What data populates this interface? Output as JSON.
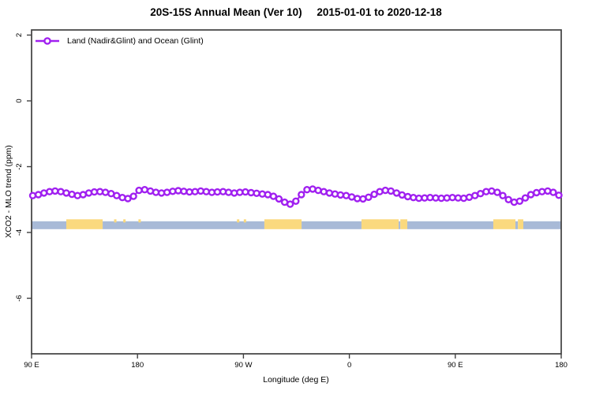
{
  "title": {
    "range_label": "20S-15S Annual Mean (Ver 10)",
    "date_range": "2015-01-01 to 2020-12-18"
  },
  "legend": {
    "label": "Land (Nadir&Glint) and Ocean (Glint)",
    "color": "#A020F0"
  },
  "axes": {
    "x": {
      "label": "Longitude (deg E)",
      "ticks": [
        {
          "lon": 90,
          "label": "90 E"
        },
        {
          "lon": 180,
          "label": "180"
        },
        {
          "lon": 270,
          "label": "90 W"
        },
        {
          "lon": 360,
          "label": "0"
        },
        {
          "lon": 450,
          "label": "90 E"
        },
        {
          "lon": 540,
          "label": "180"
        }
      ]
    },
    "y": {
      "label": "XCO2 - MLO trend (ppm)",
      "ticks": [
        {
          "value": 2,
          "label": "2"
        },
        {
          "value": 0,
          "label": "0"
        },
        {
          "value": -2,
          "label": "-2"
        },
        {
          "value": -4,
          "label": "-4"
        },
        {
          "value": -6,
          "label": "-6"
        }
      ]
    }
  },
  "colors": {
    "series": "#A020F0",
    "ocean": "#A8BAD7",
    "land": "#FAD97E",
    "axis": "#404040"
  },
  "chart_data": {
    "type": "line",
    "title": "20S-15S Annual Mean (Ver 10)   2015-01-01 to 2020-12-18",
    "xlabel": "Longitude (deg E)",
    "ylabel": "XCO2 - MLO trend (ppm)",
    "xlim": [
      90,
      540
    ],
    "ylim": [
      -7.7,
      2.2
    ],
    "x_tick_labels": [
      "90 E",
      "180",
      "90 W",
      "0",
      "90 E",
      "180"
    ],
    "grid": false,
    "legend_position": "top-left",
    "series": [
      {
        "name": "Land (Nadir&Glint) and Ocean (Glint)",
        "color": "#A020F0",
        "marker": "open-circle",
        "x": [
          91.0,
          95.8,
          100.5,
          105.3,
          110.0,
          114.8,
          119.5,
          124.3,
          129.0,
          133.8,
          138.6,
          143.3,
          148.1,
          152.8,
          157.6,
          162.3,
          167.1,
          171.8,
          176.6,
          181.3,
          186.1,
          190.9,
          195.6,
          200.4,
          205.1,
          209.9,
          214.6,
          219.4,
          224.1,
          228.9,
          233.7,
          238.4,
          243.2,
          247.9,
          252.7,
          257.4,
          262.2,
          266.9,
          271.7,
          276.5,
          281.2,
          286.0,
          290.7,
          295.5,
          300.2,
          305.0,
          309.7,
          314.5,
          319.2,
          324.0,
          328.8,
          333.5,
          338.3,
          343.0,
          347.8,
          352.5,
          357.3,
          362.0,
          366.8,
          371.6,
          376.3,
          381.1,
          385.8,
          390.6,
          395.3,
          400.1,
          404.8,
          409.6,
          414.4,
          419.1,
          423.9,
          428.6,
          433.4,
          438.1,
          442.9,
          447.6,
          452.4,
          457.2,
          461.9,
          466.7,
          471.4,
          476.2,
          480.9,
          485.7,
          490.4,
          495.2,
          500.0,
          504.7,
          509.5,
          514.2,
          519.0,
          523.7,
          528.5,
          533.2,
          538.0
        ],
        "y": [
          -2.88,
          -2.85,
          -2.8,
          -2.76,
          -2.74,
          -2.76,
          -2.8,
          -2.84,
          -2.88,
          -2.85,
          -2.8,
          -2.77,
          -2.76,
          -2.78,
          -2.82,
          -2.88,
          -2.94,
          -2.97,
          -2.9,
          -2.72,
          -2.7,
          -2.74,
          -2.78,
          -2.8,
          -2.78,
          -2.75,
          -2.73,
          -2.75,
          -2.77,
          -2.76,
          -2.74,
          -2.76,
          -2.78,
          -2.77,
          -2.76,
          -2.78,
          -2.8,
          -2.78,
          -2.77,
          -2.79,
          -2.81,
          -2.83,
          -2.85,
          -2.9,
          -2.98,
          -3.08,
          -3.14,
          -3.05,
          -2.85,
          -2.7,
          -2.68,
          -2.72,
          -2.76,
          -2.8,
          -2.83,
          -2.86,
          -2.88,
          -2.92,
          -2.97,
          -2.98,
          -2.93,
          -2.84,
          -2.76,
          -2.72,
          -2.74,
          -2.8,
          -2.86,
          -2.91,
          -2.94,
          -2.96,
          -2.95,
          -2.94,
          -2.95,
          -2.96,
          -2.95,
          -2.94,
          -2.95,
          -2.96,
          -2.93,
          -2.88,
          -2.82,
          -2.76,
          -2.74,
          -2.78,
          -2.88,
          -3.0,
          -3.08,
          -3.05,
          -2.95,
          -2.85,
          -2.79,
          -2.76,
          -2.74,
          -2.78,
          -2.87
        ]
      }
    ],
    "surface_band": {
      "description": "land/ocean strip along 20S-15S",
      "ocean_top": -3.66,
      "land_top": -3.6,
      "bottom": -3.9,
      "ocean_color": "#A8BAD7",
      "land_color": "#FAD97E",
      "segments": [
        {
          "type": "ocean",
          "from": 90.0,
          "to": 119.5
        },
        {
          "type": "land",
          "from": 119.5,
          "to": 150.4
        },
        {
          "type": "ocean",
          "from": 150.4,
          "to": 287.8
        },
        {
          "type": "land",
          "from": 287.8,
          "to": 319.4
        },
        {
          "type": "ocean",
          "from": 319.4,
          "to": 370.3
        },
        {
          "type": "land",
          "from": 370.3,
          "to": 401.9
        },
        {
          "type": "ocean",
          "from": 401.9,
          "to": 403.3
        },
        {
          "type": "land",
          "from": 403.3,
          "to": 409.2
        },
        {
          "type": "ocean",
          "from": 409.2,
          "to": 482.3
        },
        {
          "type": "land",
          "from": 482.3,
          "to": 501.1
        },
        {
          "type": "ocean",
          "from": 501.1,
          "to": 503.2
        },
        {
          "type": "land",
          "from": 503.2,
          "to": 507.8
        },
        {
          "type": "ocean",
          "from": 507.8,
          "to": 540.0
        }
      ],
      "islands": [
        161.1,
        168.9,
        181.8,
        265.5,
        271.3
      ]
    }
  }
}
